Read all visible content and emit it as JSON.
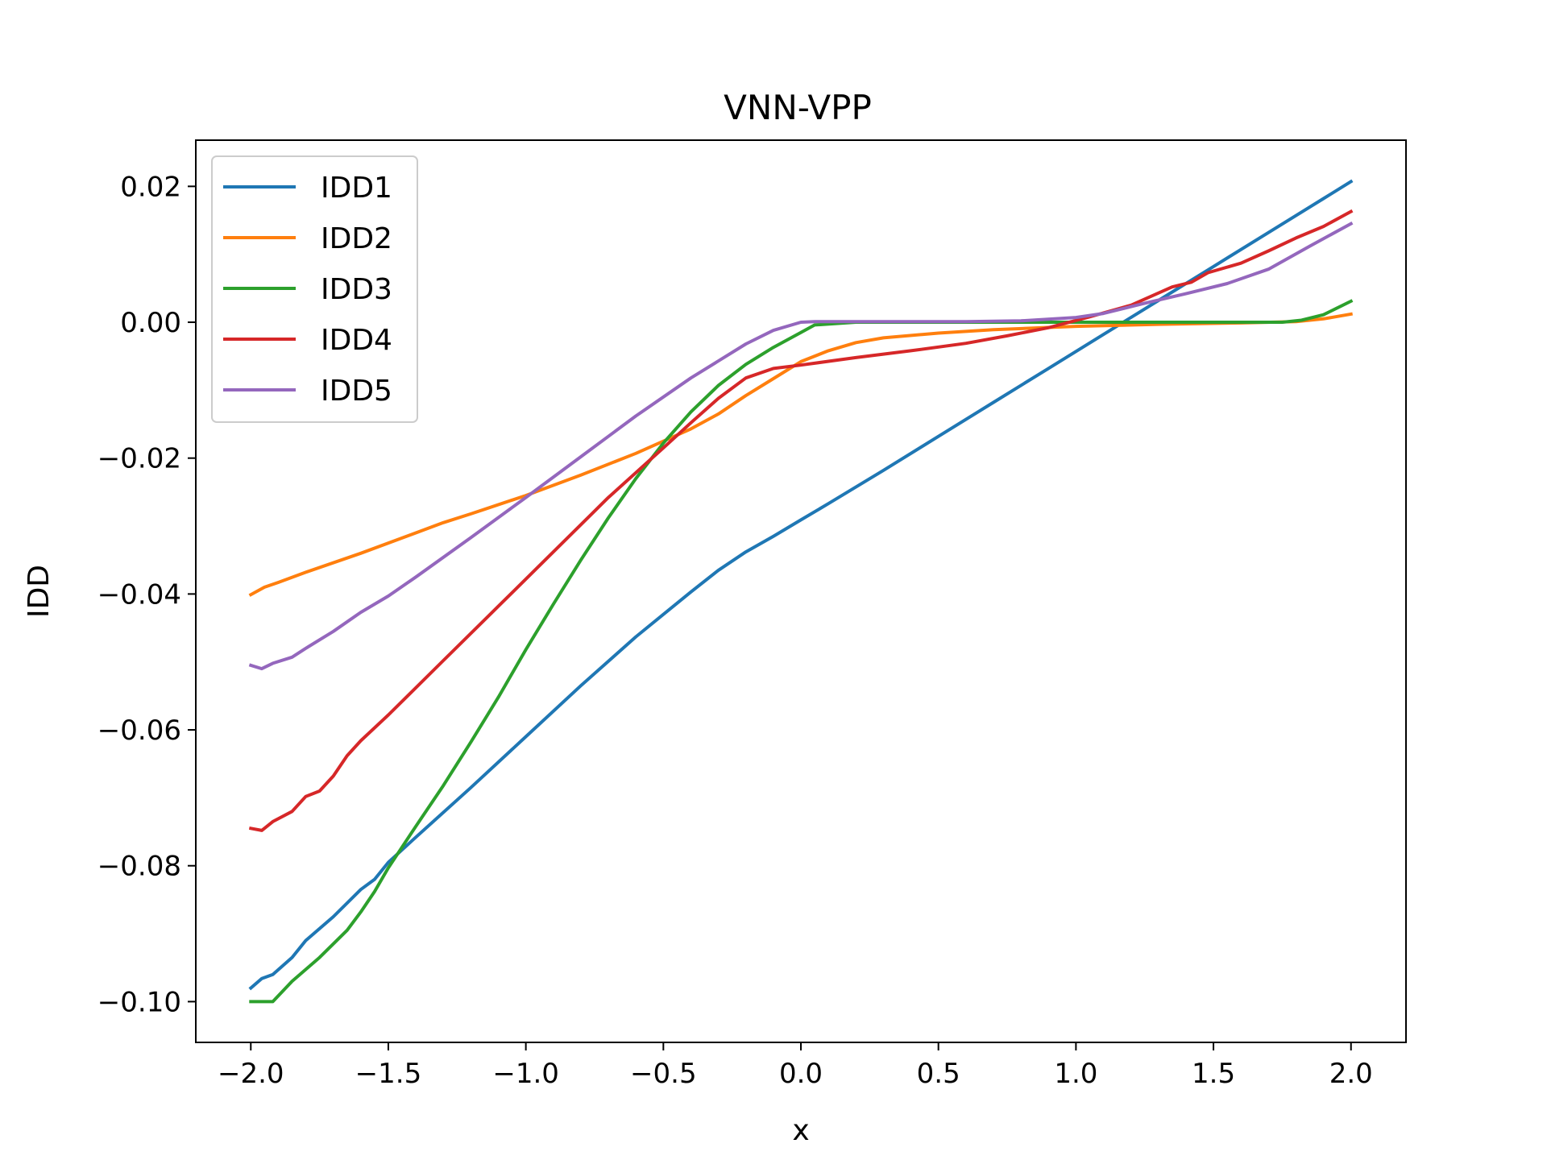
{
  "chart_data": {
    "type": "line",
    "title": "VNN-VPP",
    "xlabel": "x",
    "ylabel": "IDD",
    "xlim": [
      -2.2,
      2.2
    ],
    "ylim": [
      -0.106,
      0.0268
    ],
    "x_ticks": [
      -2.0,
      -1.5,
      -1.0,
      -0.5,
      0.0,
      0.5,
      1.0,
      1.5,
      2.0
    ],
    "x_tick_labels": [
      "−2.0",
      "−1.5",
      "−1.0",
      "−0.5",
      "0.0",
      "0.5",
      "1.0",
      "1.5",
      "2.0"
    ],
    "y_ticks": [
      -0.1,
      -0.08,
      -0.06,
      -0.04,
      -0.02,
      0.0,
      0.02
    ],
    "y_tick_labels": [
      "−0.10",
      "−0.08",
      "−0.06",
      "−0.04",
      "−0.02",
      "0.00",
      "0.02"
    ],
    "grid": false,
    "legend_position": "top-left",
    "series": [
      {
        "name": "IDD1",
        "color": "#1f77b4",
        "points": [
          [
            -2.0,
            -0.098
          ],
          [
            -1.96,
            -0.0966
          ],
          [
            -1.92,
            -0.096
          ],
          [
            -1.85,
            -0.0935
          ],
          [
            -1.8,
            -0.091
          ],
          [
            -1.7,
            -0.0875
          ],
          [
            -1.6,
            -0.0835
          ],
          [
            -1.55,
            -0.082
          ],
          [
            -1.5,
            -0.0795
          ],
          [
            -1.4,
            -0.0758
          ],
          [
            -1.2,
            -0.0685
          ],
          [
            -1.0,
            -0.061
          ],
          [
            -0.8,
            -0.0535
          ],
          [
            -0.6,
            -0.0463
          ],
          [
            -0.4,
            -0.0397
          ],
          [
            -0.3,
            -0.0365
          ],
          [
            -0.2,
            -0.0338
          ],
          [
            -0.1,
            -0.0315
          ],
          [
            0.0,
            -0.0291
          ],
          [
            0.1,
            -0.0267
          ],
          [
            0.3,
            -0.0218
          ],
          [
            0.5,
            -0.0168
          ],
          [
            0.7,
            -0.0118
          ],
          [
            0.9,
            -0.0068
          ],
          [
            1.1,
            -0.0018
          ],
          [
            1.3,
            0.0032
          ],
          [
            1.5,
            0.0082
          ],
          [
            1.7,
            0.0132
          ],
          [
            1.9,
            0.0182
          ],
          [
            2.0,
            0.0207
          ]
        ]
      },
      {
        "name": "IDD2",
        "color": "#ff7f0e",
        "points": [
          [
            -2.0,
            -0.0401
          ],
          [
            -1.95,
            -0.039
          ],
          [
            -1.9,
            -0.0383
          ],
          [
            -1.8,
            -0.0368
          ],
          [
            -1.6,
            -0.034
          ],
          [
            -1.4,
            -0.031
          ],
          [
            -1.3,
            -0.0295
          ],
          [
            -1.2,
            -0.0282
          ],
          [
            -1.0,
            -0.0255
          ],
          [
            -0.8,
            -0.0225
          ],
          [
            -0.6,
            -0.0193
          ],
          [
            -0.4,
            -0.0157
          ],
          [
            -0.3,
            -0.0135
          ],
          [
            -0.2,
            -0.0108
          ],
          [
            -0.1,
            -0.0083
          ],
          [
            0.0,
            -0.0058
          ],
          [
            0.1,
            -0.0042
          ],
          [
            0.2,
            -0.003
          ],
          [
            0.3,
            -0.0023
          ],
          [
            0.5,
            -0.0016
          ],
          [
            0.7,
            -0.0011
          ],
          [
            1.0,
            -0.0006
          ],
          [
            1.3,
            -0.0003
          ],
          [
            1.6,
            -0.0001
          ],
          [
            1.8,
            0.0001
          ],
          [
            1.9,
            0.0005
          ],
          [
            2.0,
            0.0012
          ]
        ]
      },
      {
        "name": "IDD3",
        "color": "#2ca02c",
        "points": [
          [
            -2.0,
            -0.1
          ],
          [
            -1.92,
            -0.1
          ],
          [
            -1.85,
            -0.097
          ],
          [
            -1.75,
            -0.0935
          ],
          [
            -1.65,
            -0.0895
          ],
          [
            -1.6,
            -0.0868
          ],
          [
            -1.55,
            -0.0838
          ],
          [
            -1.5,
            -0.0803
          ],
          [
            -1.4,
            -0.0742
          ],
          [
            -1.3,
            -0.0682
          ],
          [
            -1.2,
            -0.0618
          ],
          [
            -1.1,
            -0.0552
          ],
          [
            -1.0,
            -0.0482
          ],
          [
            -0.9,
            -0.0415
          ],
          [
            -0.8,
            -0.035
          ],
          [
            -0.7,
            -0.0288
          ],
          [
            -0.6,
            -0.023
          ],
          [
            -0.5,
            -0.0178
          ],
          [
            -0.4,
            -0.0132
          ],
          [
            -0.3,
            -0.0093
          ],
          [
            -0.2,
            -0.0062
          ],
          [
            -0.1,
            -0.0037
          ],
          [
            0.0,
            -0.0015
          ],
          [
            0.05,
            -0.0004
          ],
          [
            0.2,
            0.0
          ],
          [
            0.6,
            0.0
          ],
          [
            0.75,
            0.0
          ],
          [
            1.0,
            0.0
          ],
          [
            1.3,
            0.0
          ],
          [
            1.6,
            0.0
          ],
          [
            1.75,
            0.0
          ],
          [
            1.82,
            0.0003
          ],
          [
            1.9,
            0.0011
          ],
          [
            2.0,
            0.0031
          ]
        ]
      },
      {
        "name": "IDD4",
        "color": "#d62728",
        "points": [
          [
            -2.0,
            -0.0745
          ],
          [
            -1.96,
            -0.0748
          ],
          [
            -1.92,
            -0.0735
          ],
          [
            -1.85,
            -0.072
          ],
          [
            -1.8,
            -0.0698
          ],
          [
            -1.75,
            -0.069
          ],
          [
            -1.7,
            -0.0668
          ],
          [
            -1.65,
            -0.0638
          ],
          [
            -1.6,
            -0.0616
          ],
          [
            -1.5,
            -0.0578
          ],
          [
            -1.3,
            -0.0498
          ],
          [
            -1.1,
            -0.0418
          ],
          [
            -0.9,
            -0.0338
          ],
          [
            -0.7,
            -0.0258
          ],
          [
            -0.5,
            -0.0185
          ],
          [
            -0.4,
            -0.0148
          ],
          [
            -0.3,
            -0.0112
          ],
          [
            -0.2,
            -0.0082
          ],
          [
            -0.1,
            -0.0068
          ],
          [
            0.0,
            -0.0063
          ],
          [
            0.2,
            -0.0052
          ],
          [
            0.4,
            -0.0042
          ],
          [
            0.6,
            -0.0031
          ],
          [
            0.75,
            -0.002
          ],
          [
            0.9,
            -0.0008
          ],
          [
            1.05,
            0.0008
          ],
          [
            1.2,
            0.0025
          ],
          [
            1.35,
            0.0052
          ],
          [
            1.42,
            0.0059
          ],
          [
            1.48,
            0.0073
          ],
          [
            1.6,
            0.0087
          ],
          [
            1.7,
            0.0105
          ],
          [
            1.8,
            0.0124
          ],
          [
            1.9,
            0.0141
          ],
          [
            2.0,
            0.0163
          ]
        ]
      },
      {
        "name": "IDD5",
        "color": "#9467bd",
        "points": [
          [
            -2.0,
            -0.0505
          ],
          [
            -1.96,
            -0.051
          ],
          [
            -1.92,
            -0.0502
          ],
          [
            -1.85,
            -0.0493
          ],
          [
            -1.8,
            -0.048
          ],
          [
            -1.7,
            -0.0455
          ],
          [
            -1.6,
            -0.0427
          ],
          [
            -1.5,
            -0.0403
          ],
          [
            -1.4,
            -0.0375
          ],
          [
            -1.2,
            -0.0317
          ],
          [
            -1.0,
            -0.0258
          ],
          [
            -0.8,
            -0.0198
          ],
          [
            -0.6,
            -0.0138
          ],
          [
            -0.4,
            -0.0082
          ],
          [
            -0.2,
            -0.0032
          ],
          [
            -0.1,
            -0.0012
          ],
          [
            0.0,
            0.0
          ],
          [
            0.05,
            0.0001
          ],
          [
            0.3,
            0.0001
          ],
          [
            0.6,
            0.0001
          ],
          [
            0.8,
            0.0002
          ],
          [
            1.0,
            0.0007
          ],
          [
            1.1,
            0.0013
          ],
          [
            1.25,
            0.0028
          ],
          [
            1.4,
            0.0042
          ],
          [
            1.55,
            0.0057
          ],
          [
            1.7,
            0.0078
          ],
          [
            1.85,
            0.0112
          ],
          [
            2.0,
            0.0145
          ]
        ]
      }
    ]
  }
}
